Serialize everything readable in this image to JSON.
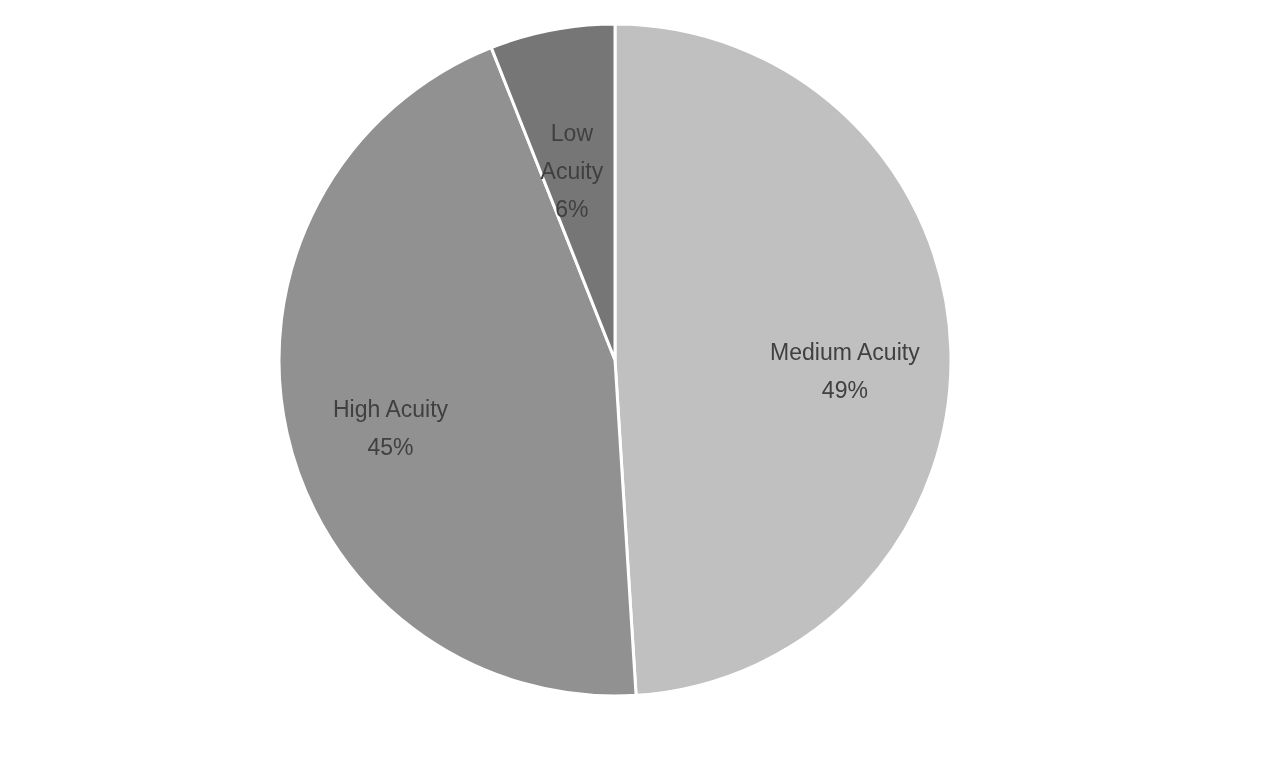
{
  "chart_data": {
    "type": "pie",
    "categories": [
      "Medium Acuity",
      "High Acuity",
      "Low Acuity"
    ],
    "values": [
      49,
      45,
      6
    ],
    "value_labels": [
      "49%",
      "45%",
      "6%"
    ],
    "colors": [
      "#c0c0c0",
      "#919191",
      "#767676"
    ],
    "legend": false
  }
}
